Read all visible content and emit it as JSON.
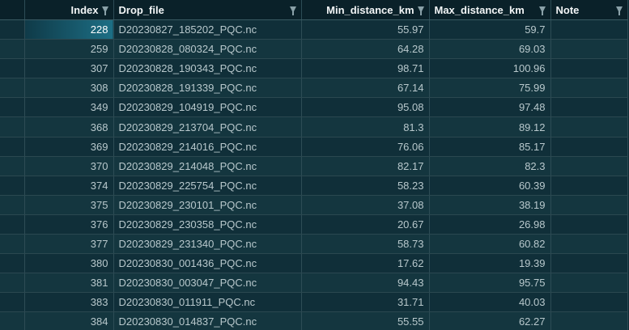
{
  "columns": {
    "index": "Index",
    "drop_file": "Drop_file",
    "min_distance": "Min_distance_km",
    "max_distance": "Max_distance_km",
    "note": "Note"
  },
  "rows": [
    {
      "index": "228",
      "drop_file": "D20230827_185202_PQC.nc",
      "min": "55.97",
      "max": "59.7",
      "note": ""
    },
    {
      "index": "259",
      "drop_file": "D20230828_080324_PQC.nc",
      "min": "64.28",
      "max": "69.03",
      "note": ""
    },
    {
      "index": "307",
      "drop_file": "D20230828_190343_PQC.nc",
      "min": "98.71",
      "max": "100.96",
      "note": ""
    },
    {
      "index": "308",
      "drop_file": "D20230828_191339_PQC.nc",
      "min": "67.14",
      "max": "75.99",
      "note": ""
    },
    {
      "index": "349",
      "drop_file": "D20230829_104919_PQC.nc",
      "min": "95.08",
      "max": "97.48",
      "note": ""
    },
    {
      "index": "368",
      "drop_file": "D20230829_213704_PQC.nc",
      "min": "81.3",
      "max": "89.12",
      "note": ""
    },
    {
      "index": "369",
      "drop_file": "D20230829_214016_PQC.nc",
      "min": "76.06",
      "max": "85.17",
      "note": ""
    },
    {
      "index": "370",
      "drop_file": "D20230829_214048_PQC.nc",
      "min": "82.17",
      "max": "82.3",
      "note": ""
    },
    {
      "index": "374",
      "drop_file": "D20230829_225754_PQC.nc",
      "min": "58.23",
      "max": "60.39",
      "note": ""
    },
    {
      "index": "375",
      "drop_file": "D20230829_230101_PQC.nc",
      "min": "37.08",
      "max": "38.19",
      "note": ""
    },
    {
      "index": "376",
      "drop_file": "D20230829_230358_PQC.nc",
      "min": "20.67",
      "max": "26.98",
      "note": ""
    },
    {
      "index": "377",
      "drop_file": "D20230829_231340_PQC.nc",
      "min": "58.73",
      "max": "60.82",
      "note": ""
    },
    {
      "index": "380",
      "drop_file": "D20230830_001436_PQC.nc",
      "min": "17.62",
      "max": "19.39",
      "note": ""
    },
    {
      "index": "381",
      "drop_file": "D20230830_003047_PQC.nc",
      "min": "94.43",
      "max": "95.75",
      "note": ""
    },
    {
      "index": "383",
      "drop_file": "D20230830_011911_PQC.nc",
      "min": "31.71",
      "max": "40.03",
      "note": ""
    },
    {
      "index": "384",
      "drop_file": "D20230830_014837_PQC.nc",
      "min": "55.55",
      "max": "62.27",
      "note": ""
    }
  ],
  "selected_row": 0,
  "icons": {
    "filter": "filter-icon"
  },
  "colors": {
    "background": "#0d2a33",
    "header_bg": "#0a2129",
    "row_odd": "#102f39",
    "row_even": "#14363f",
    "selection": "#1d6f85",
    "text": "#b8c8cc",
    "header_text": "#f2f5f6"
  }
}
